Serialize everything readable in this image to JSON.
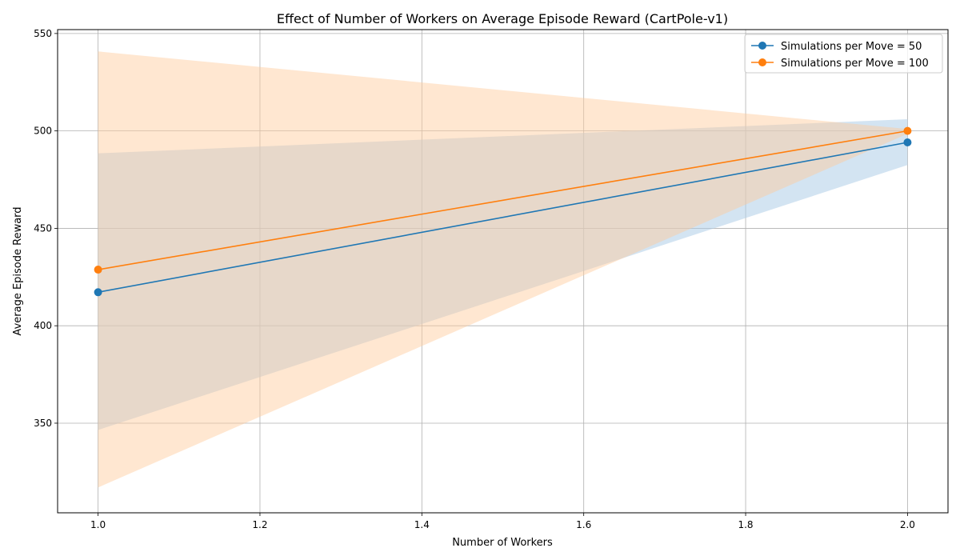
{
  "chart_data": {
    "type": "line",
    "title": "Effect of Number of Workers on Average Episode Reward (CartPole-v1)",
    "xlabel": "Number of Workers",
    "ylabel": "Average Episode Reward",
    "xlim": [
      0.95,
      2.05
    ],
    "ylim": [
      304,
      552
    ],
    "x_ticks": [
      1.0,
      1.2,
      1.4,
      1.6,
      1.8,
      2.0
    ],
    "x_tick_labels": [
      "1.0",
      "1.2",
      "1.4",
      "1.6",
      "1.8",
      "2.0"
    ],
    "y_ticks": [
      350,
      400,
      450,
      500,
      550
    ],
    "y_tick_labels": [
      "350",
      "400",
      "450",
      "500",
      "550"
    ],
    "grid": true,
    "legend_position": "top-right",
    "x": [
      1,
      2
    ],
    "series": [
      {
        "name": "Simulations per Move = 50",
        "color": "#1f77b4",
        "band_color": "#aecde8",
        "band_opacity": 0.55,
        "values": [
          417.2,
          494.1
        ],
        "lower": [
          346.5,
          482.5
        ],
        "upper": [
          488.5,
          506.0
        ]
      },
      {
        "name": "Simulations per Move = 100",
        "color": "#ff7f0e",
        "band_color": "#ffc99a",
        "band_opacity": 0.45,
        "values": [
          428.8,
          500.0
        ],
        "lower": [
          317.0,
          498.5
        ],
        "upper": [
          540.8,
          501.0
        ]
      }
    ]
  }
}
